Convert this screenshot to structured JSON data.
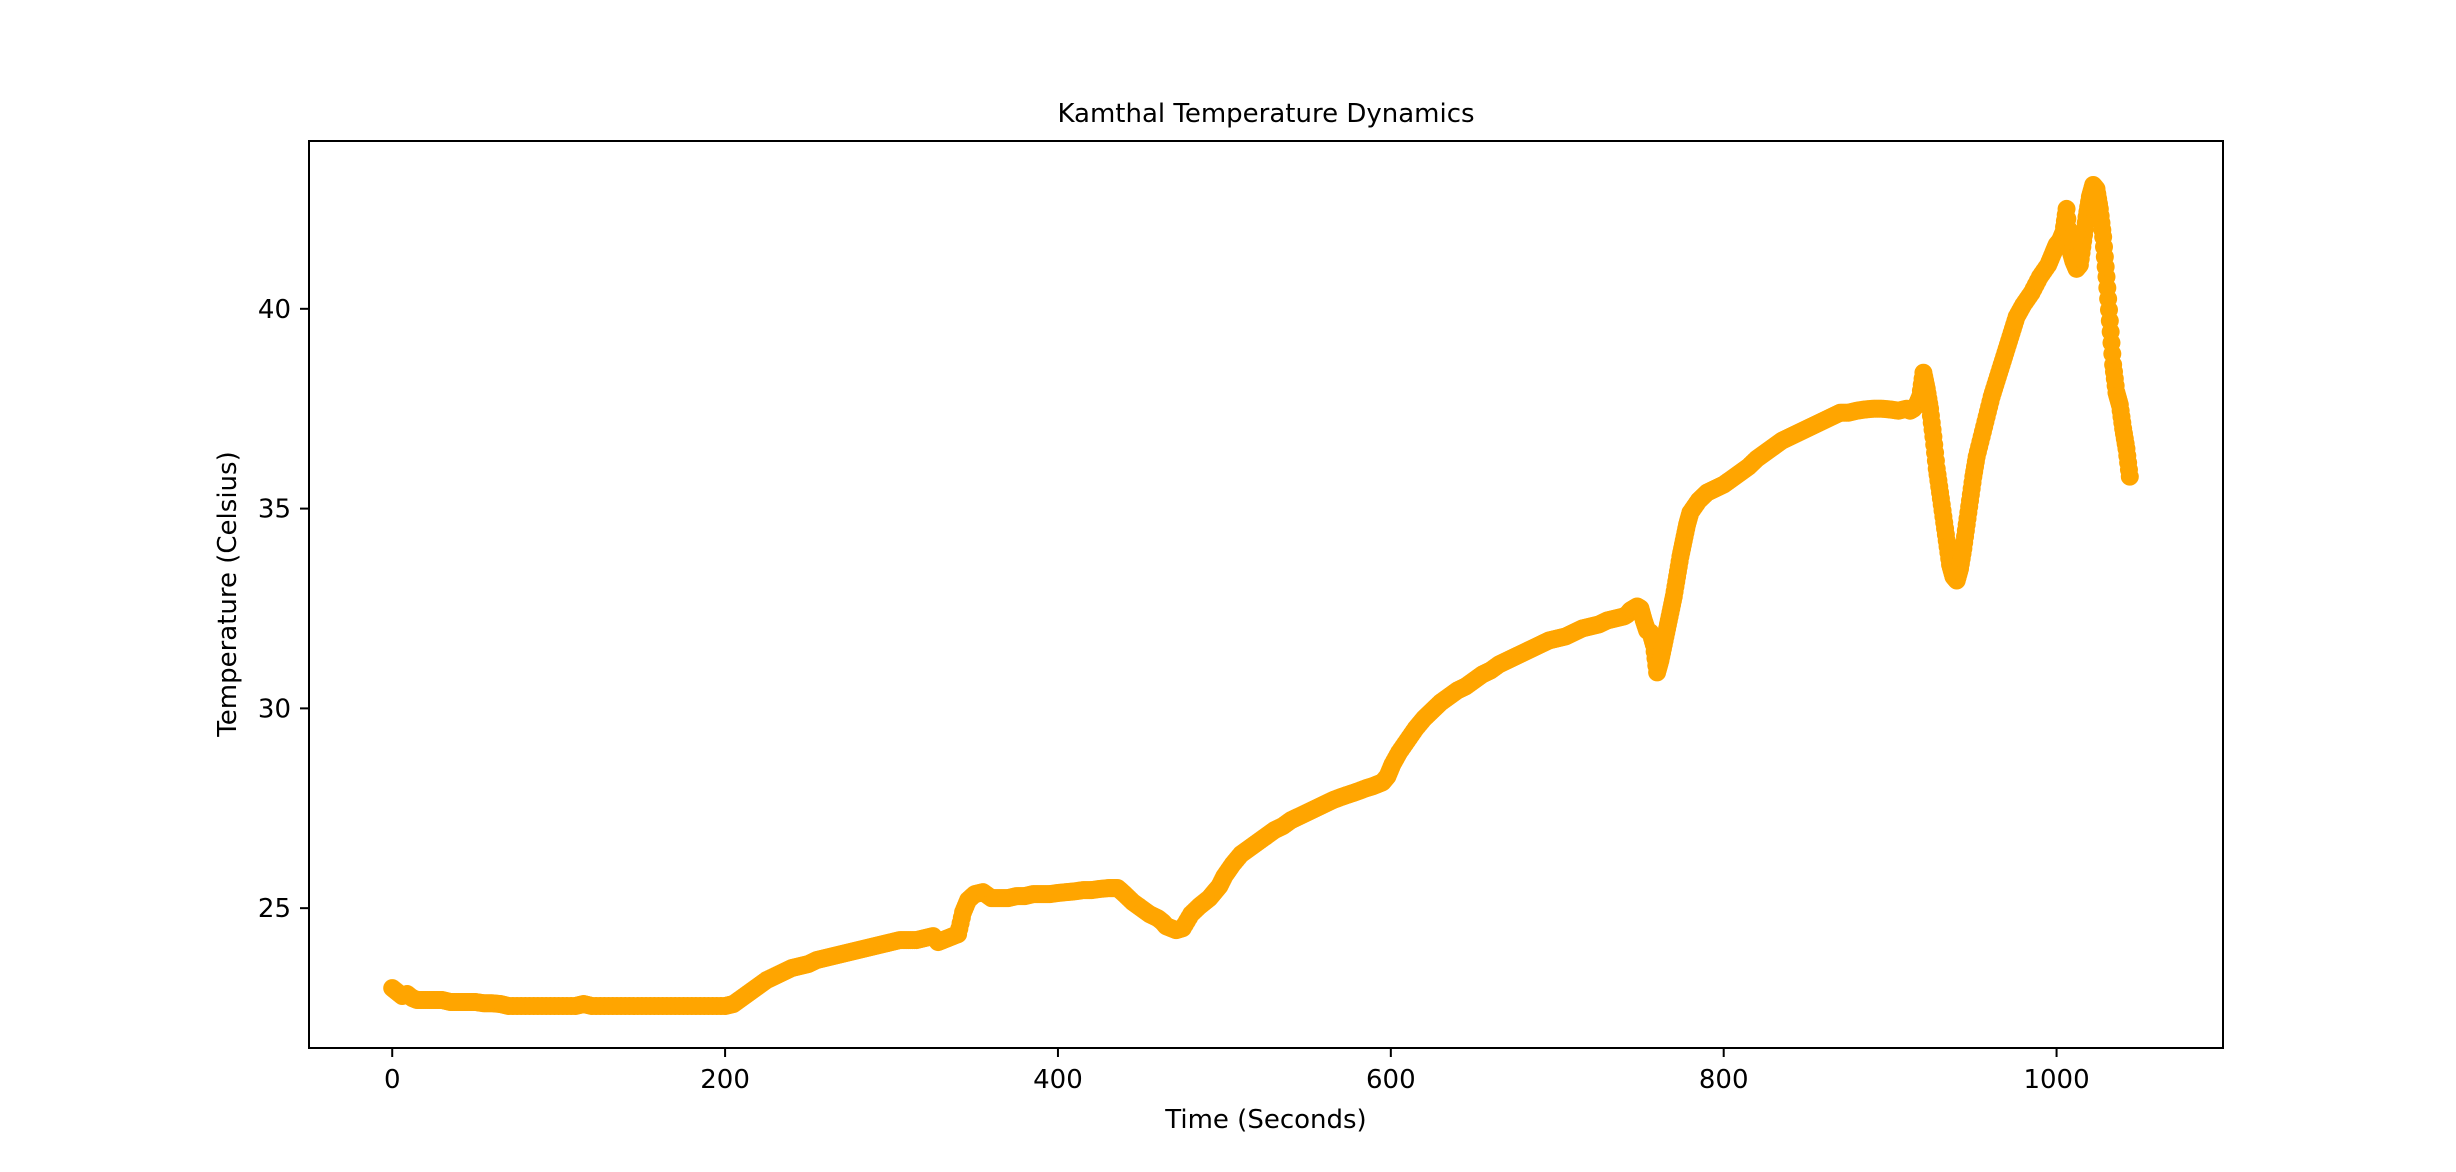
{
  "chart_data": {
    "type": "scatter",
    "title": "Kamthal Temperature Dynamics",
    "xlabel": "Time (Seconds)",
    "ylabel": "Temperature (Celsius)",
    "xlim": [
      -50,
      1100
    ],
    "ylim": [
      21.5,
      44.2
    ],
    "xticks": [
      0,
      200,
      400,
      600,
      800,
      1000
    ],
    "yticks": [
      25,
      30,
      35,
      40
    ],
    "grid": false,
    "marker_color": "#FFA500",
    "series": [
      {
        "x": [
          0,
          3,
          6,
          9,
          12,
          15,
          20,
          25,
          30,
          35,
          40,
          45,
          50,
          55,
          60,
          65,
          70,
          80,
          90,
          100,
          110,
          115,
          120,
          130,
          140,
          150,
          160,
          170,
          180,
          190,
          200,
          205,
          210,
          215,
          220,
          225,
          230,
          235,
          240,
          245,
          250,
          255,
          260,
          265,
          270,
          275,
          280,
          285,
          290,
          295,
          300,
          305,
          310,
          315,
          320,
          325,
          328,
          331,
          334,
          337,
          340,
          343,
          346,
          350,
          355,
          360,
          365,
          370,
          375,
          380,
          385,
          390,
          395,
          400,
          405,
          410,
          415,
          420,
          425,
          430,
          433,
          436,
          440,
          445,
          450,
          455,
          460,
          463,
          465,
          468,
          471,
          475,
          480,
          485,
          488,
          491,
          494,
          497,
          500,
          505,
          510,
          515,
          520,
          525,
          530,
          535,
          540,
          545,
          550,
          555,
          560,
          565,
          570,
          575,
          580,
          585,
          589,
          592,
          595,
          598,
          601,
          605,
          610,
          615,
          620,
          625,
          630,
          635,
          640,
          645,
          650,
          655,
          660,
          665,
          670,
          675,
          680,
          685,
          690,
          695,
          700,
          705,
          710,
          715,
          720,
          725,
          730,
          735,
          740,
          742,
          744,
          746,
          748,
          750,
          752,
          754,
          756,
          758,
          760,
          762,
          764,
          766,
          768,
          770,
          772,
          774,
          776,
          778,
          780,
          785,
          790,
          795,
          800,
          805,
          810,
          815,
          820,
          825,
          830,
          835,
          840,
          845,
          850,
          855,
          860,
          865,
          870,
          875,
          880,
          885,
          890,
          895,
          900,
          905,
          910,
          912,
          914,
          916,
          918,
          920,
          922,
          924,
          926,
          928,
          930,
          932,
          934,
          936,
          938,
          940,
          942,
          944,
          946,
          948,
          950,
          952,
          955,
          958,
          961,
          964,
          967,
          970,
          973,
          976,
          980,
          985,
          990,
          995,
          998,
          1000,
          1002,
          1004,
          1006,
          1008,
          1010,
          1012,
          1014,
          1016,
          1018,
          1020,
          1022,
          1024,
          1026,
          1028,
          1030,
          1032,
          1034,
          1036,
          1038,
          1040,
          1042,
          1044
        ],
        "y": [
          23.0,
          22.9,
          22.8,
          22.85,
          22.75,
          22.7,
          22.7,
          22.7,
          22.7,
          22.65,
          22.65,
          22.65,
          22.65,
          22.62,
          22.62,
          22.6,
          22.55,
          22.55,
          22.55,
          22.55,
          22.55,
          22.6,
          22.55,
          22.55,
          22.55,
          22.55,
          22.55,
          22.55,
          22.55,
          22.55,
          22.55,
          22.6,
          22.75,
          22.9,
          23.05,
          23.2,
          23.3,
          23.4,
          23.5,
          23.55,
          23.6,
          23.7,
          23.75,
          23.8,
          23.85,
          23.9,
          23.95,
          24.0,
          24.05,
          24.1,
          24.15,
          24.2,
          24.2,
          24.2,
          24.25,
          24.3,
          24.15,
          24.2,
          24.25,
          24.3,
          24.35,
          24.9,
          25.2,
          25.35,
          25.4,
          25.25,
          25.25,
          25.25,
          25.3,
          25.3,
          25.35,
          25.35,
          25.35,
          25.38,
          25.4,
          25.42,
          25.45,
          25.45,
          25.48,
          25.5,
          25.5,
          25.5,
          25.35,
          25.15,
          25.0,
          24.85,
          24.75,
          24.65,
          24.55,
          24.5,
          24.45,
          24.5,
          24.85,
          25.05,
          25.15,
          25.25,
          25.4,
          25.55,
          25.8,
          26.1,
          26.35,
          26.5,
          26.65,
          26.8,
          26.95,
          27.05,
          27.2,
          27.3,
          27.4,
          27.5,
          27.6,
          27.7,
          27.78,
          27.85,
          27.92,
          28.0,
          28.05,
          28.1,
          28.15,
          28.3,
          28.6,
          28.9,
          29.2,
          29.5,
          29.75,
          29.95,
          30.15,
          30.3,
          30.45,
          30.55,
          30.7,
          30.85,
          30.95,
          31.1,
          31.2,
          31.3,
          31.4,
          31.5,
          31.6,
          31.7,
          31.75,
          31.8,
          31.9,
          32.0,
          32.05,
          32.1,
          32.2,
          32.25,
          32.3,
          32.35,
          32.45,
          32.5,
          32.55,
          32.5,
          32.2,
          31.95,
          31.9,
          31.6,
          30.9,
          31.2,
          31.6,
          32.0,
          32.4,
          32.8,
          33.3,
          33.8,
          34.2,
          34.6,
          34.9,
          35.2,
          35.4,
          35.5,
          35.6,
          35.75,
          35.9,
          36.05,
          36.25,
          36.4,
          36.55,
          36.7,
          36.8,
          36.9,
          37.0,
          37.1,
          37.2,
          37.3,
          37.4,
          37.4,
          37.45,
          37.48,
          37.5,
          37.5,
          37.48,
          37.45,
          37.5,
          37.45,
          37.5,
          37.6,
          37.8,
          38.4,
          38.0,
          37.5,
          36.8,
          36.0,
          35.4,
          34.8,
          34.2,
          33.6,
          33.3,
          33.2,
          33.5,
          34.0,
          34.6,
          35.2,
          35.8,
          36.3,
          36.8,
          37.3,
          37.8,
          38.2,
          38.6,
          39.0,
          39.4,
          39.8,
          40.1,
          40.4,
          40.8,
          41.1,
          41.4,
          41.6,
          41.7,
          41.9,
          42.5,
          41.5,
          41.2,
          41.0,
          41.1,
          41.7,
          42.3,
          42.8,
          43.1,
          43.0,
          42.5,
          41.8,
          40.8,
          39.7,
          38.6,
          37.9,
          37.6,
          37.0,
          36.5,
          35.8
        ]
      }
    ]
  }
}
